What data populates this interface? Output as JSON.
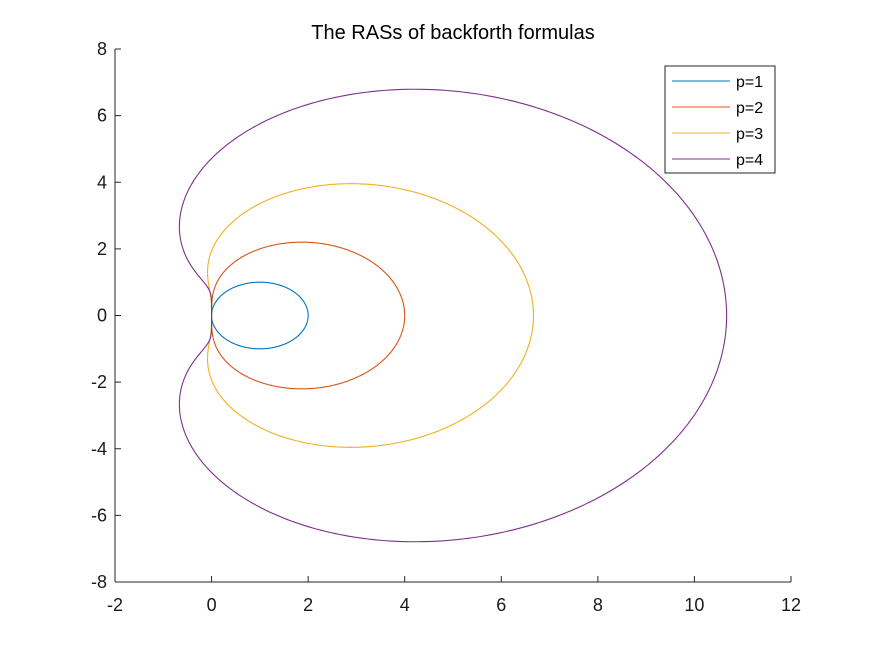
{
  "chart_data": {
    "type": "line",
    "title": "The RASs of backforth formulas",
    "xlabel": "",
    "ylabel": "",
    "xlim": [
      -2,
      12
    ],
    "ylim": [
      -8,
      8
    ],
    "xticks": [
      -2,
      0,
      2,
      4,
      6,
      8,
      10,
      12
    ],
    "yticks": [
      -8,
      -6,
      -4,
      -2,
      0,
      2,
      4,
      6,
      8
    ],
    "xtick_labels": [
      "-2",
      "0",
      "2",
      "4",
      "6",
      "8",
      "10",
      "12"
    ],
    "ytick_labels": [
      "-8",
      "-6",
      "-4",
      "-2",
      "0",
      "2",
      "4",
      "6",
      "8"
    ],
    "grid": false,
    "legend_position": "top-right",
    "series": [
      {
        "name": "p=1",
        "color": "#0072BD",
        "p": 1
      },
      {
        "name": "p=2",
        "color": "#D95319",
        "p": 2
      },
      {
        "name": "p=3",
        "color": "#EDB120",
        "p": 3
      },
      {
        "name": "p=4",
        "color": "#7E2F8E",
        "p": 4
      }
    ]
  }
}
